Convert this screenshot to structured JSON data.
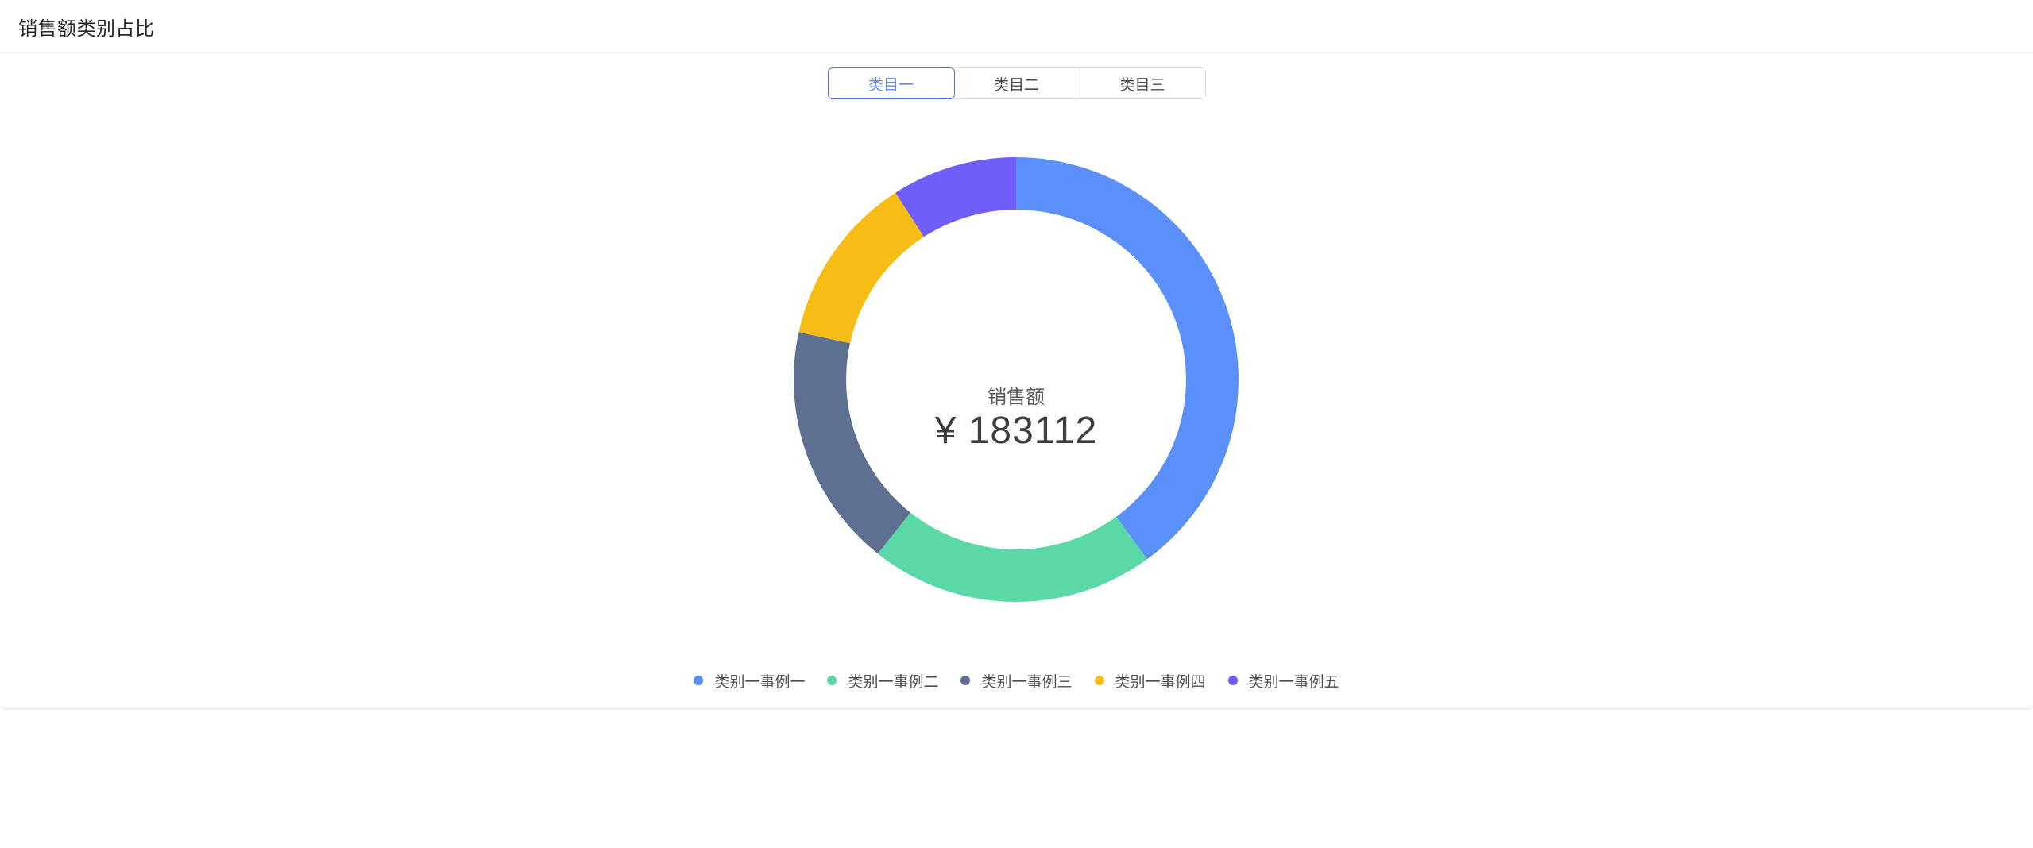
{
  "header": {
    "title": "销售额类别占比"
  },
  "tabs": {
    "items": [
      {
        "label": "类目一",
        "selected": true
      },
      {
        "label": "类目二",
        "selected": false
      },
      {
        "label": "类目三",
        "selected": false
      }
    ]
  },
  "chart_data": {
    "type": "pie",
    "title": "销售额类别占比",
    "center_label": "销售额",
    "center_value": "¥ 183112",
    "total": 183112,
    "inner_radius_ratio": 0.764,
    "start_angle_deg": 0,
    "direction": "clockwise",
    "legend_position": "bottom",
    "series": [
      {
        "name": "类别一事例一",
        "value": 73200,
        "percent": 39.97,
        "color": "#5B8FF9"
      },
      {
        "name": "类别一事例二",
        "value": 37900,
        "percent": 20.7,
        "color": "#5AD8A6"
      },
      {
        "name": "类别一事例三",
        "value": 32500,
        "percent": 17.75,
        "color": "#5D7092"
      },
      {
        "name": "类别一事例四",
        "value": 22800,
        "percent": 12.45,
        "color": "#F6BD16"
      },
      {
        "name": "类别一事例五",
        "value": 16712,
        "percent": 9.13,
        "color": "#6F5EF9"
      }
    ]
  },
  "colors": {
    "tab_selected_border": "#5272e3",
    "tab_selected_text": "#6485ed",
    "tab_border": "#d9d9d9",
    "header_divider": "#ececec",
    "card_bottom_divider": "#e3e3e3"
  }
}
